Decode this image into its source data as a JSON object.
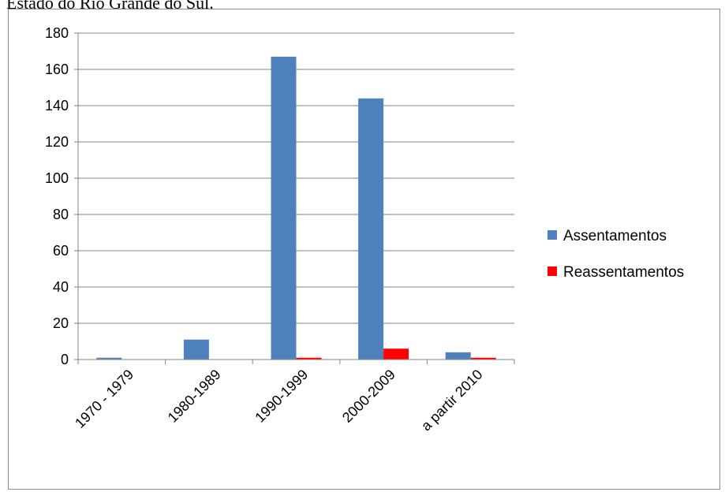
{
  "caption": "Estado do Rio Grande do Sul.",
  "chart_data": {
    "type": "bar",
    "title": "",
    "xlabel": "",
    "ylabel": "",
    "categories": [
      "1970 - 1979",
      "1980-1989",
      "1990-1999",
      "2000-2009",
      "a partir 2010"
    ],
    "series": [
      {
        "name": "Assentamentos",
        "values": [
          1,
          11,
          167,
          144,
          4
        ],
        "color": "#4f81bd"
      },
      {
        "name": "Reassentamentos",
        "values": [
          0,
          0,
          1,
          6,
          1
        ],
        "color": "#ff0000"
      }
    ],
    "ylim": [
      0,
      180
    ],
    "yticks": [
      0,
      20,
      40,
      60,
      80,
      100,
      120,
      140,
      160,
      180
    ],
    "grid": true,
    "legend_position": "right"
  }
}
